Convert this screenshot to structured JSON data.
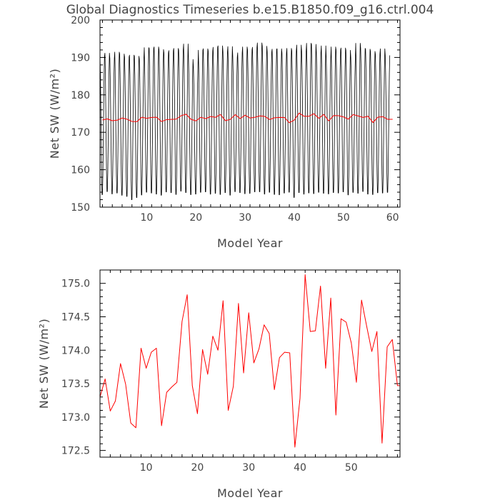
{
  "figure": {
    "title": "Global Diagnostics Timeseries b.e15.B1850.f09_g16.ctrl.004"
  },
  "chart_data": [
    {
      "type": "line",
      "xlabel": "Model Year",
      "ylabel": "Net SW (W/m²)",
      "xlim": [
        0.5,
        61.5
      ],
      "ylim": [
        150,
        200
      ],
      "xticks": [
        10,
        20,
        30,
        40,
        50,
        60
      ],
      "yticks": [
        150,
        160,
        170,
        180,
        190,
        200
      ],
      "grid": false,
      "series": [
        {
          "kind": "monthly",
          "color": "#000000",
          "x_start": 0.5,
          "step": 0.0833333,
          "seasonal_max": [
            191.0,
            191.8,
            190.4,
            192.1,
            191.6,
            190.8,
            191.3,
            191.0,
            190.2,
            193.3,
            193.1,
            193.5,
            192.8,
            191.9,
            192.5,
            193.1,
            192.6,
            194.3,
            190.1,
            187.9,
            192.6,
            193.0,
            192.4,
            193.4,
            193.8,
            192.2,
            193.6,
            190.7,
            191.9,
            193.5,
            192.7,
            193.4,
            194.6,
            193.7,
            192.1,
            192.9,
            193.0,
            191.9,
            193.1,
            192.5,
            194.0,
            192.4,
            194.5,
            194.2,
            191.9,
            193.8,
            190.4,
            193.5,
            192.7,
            193.2,
            192.6,
            190.5,
            194.5,
            193.1,
            192.9,
            192.3,
            191.5,
            193.0,
            191.2
          ],
          "seasonal_min": [
            152.7,
            153.5,
            152.9,
            153.1,
            152.5,
            152.2,
            151.3,
            151.9,
            152.6,
            153.3,
            153.1,
            152.8,
            152.5,
            153.4,
            153.2,
            152.7,
            153.6,
            153.2,
            152.7,
            152.9,
            153.3,
            153.4,
            152.8,
            153.0,
            152.7,
            153.2,
            152.5,
            153.5,
            153.2,
            152.9,
            153.0,
            153.4,
            153.4,
            152.8,
            153.3,
            152.7,
            152.6,
            153.1,
            153.3,
            151.9,
            153.2,
            152.8,
            153.1,
            152.9,
            153.3,
            153.0,
            152.9,
            153.2,
            153.1,
            153.4,
            152.6,
            153.3,
            153.0,
            153.5,
            152.8,
            152.7,
            153.2,
            153.1,
            153.3
          ]
        },
        {
          "kind": "annual",
          "color": "#ff0000",
          "x": [
            1,
            2,
            3,
            4,
            5,
            6,
            7,
            8,
            9,
            10,
            11,
            12,
            13,
            14,
            15,
            16,
            17,
            18,
            19,
            20,
            21,
            22,
            23,
            24,
            25,
            26,
            27,
            28,
            29,
            30,
            31,
            32,
            33,
            34,
            35,
            36,
            37,
            38,
            39,
            40,
            41,
            42,
            43,
            44,
            45,
            46,
            47,
            48,
            49,
            50,
            51,
            52,
            53,
            54,
            55,
            56,
            57,
            58,
            59,
            60
          ],
          "values": [
            173.3,
            173.57,
            173.09,
            173.24,
            173.8,
            173.49,
            172.91,
            172.84,
            174.03,
            173.73,
            173.97,
            174.03,
            172.87,
            173.37,
            173.45,
            173.52,
            174.43,
            174.83,
            173.47,
            173.05,
            174.01,
            173.64,
            174.21,
            174.0,
            174.74,
            173.1,
            173.46,
            174.7,
            173.66,
            174.56,
            173.81,
            174.02,
            174.38,
            174.25,
            173.41,
            173.89,
            173.97,
            173.96,
            172.55,
            173.28,
            175.13,
            174.28,
            174.29,
            174.96,
            173.73,
            174.78,
            173.03,
            174.47,
            174.42,
            174.11,
            173.52,
            174.75,
            174.36,
            173.98,
            174.28,
            172.61,
            174.05,
            174.16,
            173.47,
            173.47
          ]
        }
      ]
    },
    {
      "type": "line",
      "xlabel": "Model Year",
      "ylabel": "Net SW (W/m²)",
      "xlim": [
        1,
        59.5
      ],
      "ylim": [
        172.4,
        175.2
      ],
      "xticks": [
        10,
        20,
        30,
        40,
        50
      ],
      "yticks": [
        172.5,
        173.0,
        173.5,
        174.0,
        174.5,
        175.0
      ],
      "ytick_labels": [
        "172.5",
        "173.0",
        "173.5",
        "174.0",
        "174.5",
        "175.0"
      ],
      "grid": false,
      "series": [
        {
          "kind": "annual",
          "color": "#ff0000",
          "x": [
            1,
            2,
            3,
            4,
            5,
            6,
            7,
            8,
            9,
            10,
            11,
            12,
            13,
            14,
            15,
            16,
            17,
            18,
            19,
            20,
            21,
            22,
            23,
            24,
            25,
            26,
            27,
            28,
            29,
            30,
            31,
            32,
            33,
            34,
            35,
            36,
            37,
            38,
            39,
            40,
            41,
            42,
            43,
            44,
            45,
            46,
            47,
            48,
            49,
            50,
            51,
            52,
            53,
            54,
            55,
            56,
            57,
            58,
            59,
            60
          ],
          "values": [
            173.3,
            173.57,
            173.09,
            173.24,
            173.8,
            173.49,
            172.91,
            172.84,
            174.03,
            173.73,
            173.97,
            174.03,
            172.87,
            173.37,
            173.45,
            173.52,
            174.43,
            174.83,
            173.47,
            173.05,
            174.01,
            173.64,
            174.21,
            174.0,
            174.74,
            173.1,
            173.46,
            174.7,
            173.66,
            174.56,
            173.81,
            174.02,
            174.38,
            174.25,
            173.41,
            173.89,
            173.97,
            173.96,
            172.55,
            173.28,
            175.13,
            174.28,
            174.29,
            174.96,
            173.73,
            174.78,
            173.03,
            174.47,
            174.42,
            174.11,
            173.52,
            174.75,
            174.36,
            173.98,
            174.28,
            172.61,
            174.05,
            174.16,
            173.47,
            173.47
          ]
        }
      ]
    }
  ]
}
